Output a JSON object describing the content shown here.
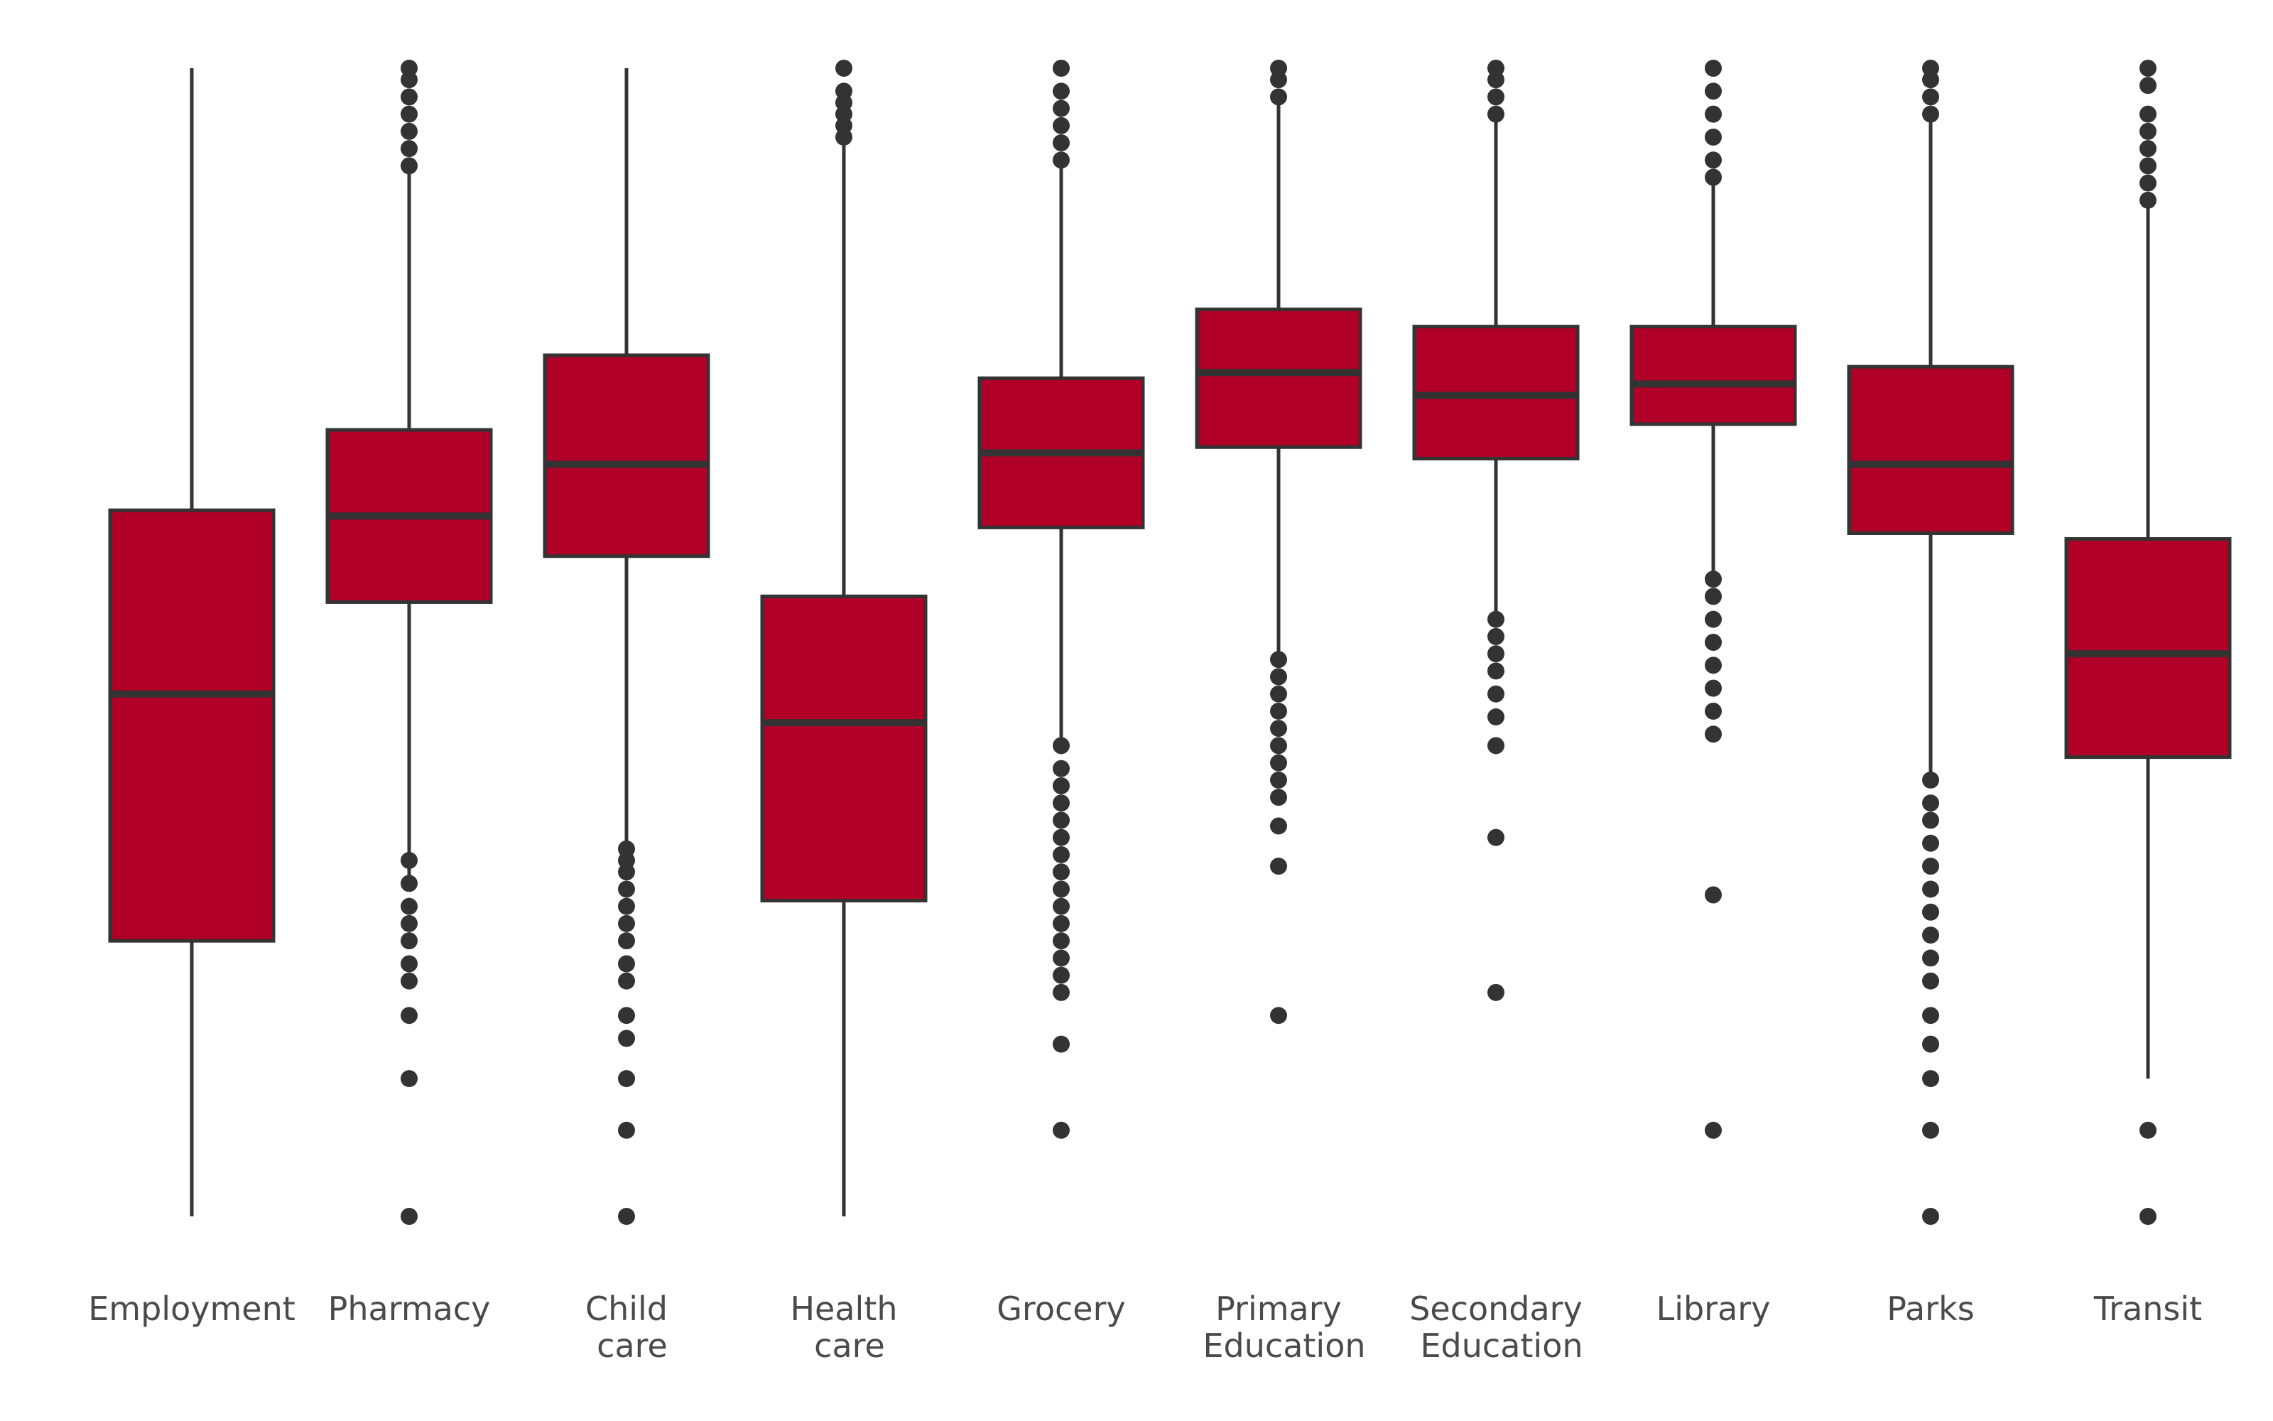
{
  "chart_data": {
    "type": "box",
    "title": "",
    "xlabel": "",
    "ylabel": "",
    "ylim": [
      0,
      1
    ],
    "grid": false,
    "legend": "none",
    "colors": {
      "box_fill": "#b00028",
      "line": "#333333",
      "label": "#4a4a4a"
    },
    "categories": [
      [
        "Employment"
      ],
      [
        "Pharmacy"
      ],
      [
        "Child",
        "care"
      ],
      [
        "Health",
        "care"
      ],
      [
        "Grocery"
      ],
      [
        "Primary",
        "Education"
      ],
      [
        "Secondary",
        "Education"
      ],
      [
        "Library"
      ],
      [
        "Parks"
      ],
      [
        "Transit"
      ]
    ],
    "boxes": [
      {
        "whisker_low": 0.0,
        "q1": 0.24,
        "median": 0.455,
        "q3": 0.615,
        "whisker_high": 1.0,
        "outliers": []
      },
      {
        "whisker_low": 0.285,
        "q1": 0.535,
        "median": 0.61,
        "q3": 0.685,
        "whisker_high": 0.92,
        "outliers": [
          0.0,
          0.12,
          0.175,
          0.205,
          0.22,
          0.24,
          0.255,
          0.27,
          0.29,
          0.31,
          0.915,
          0.93,
          0.945,
          0.96,
          0.975,
          0.99,
          1.0
        ]
      },
      {
        "whisker_low": 0.31,
        "q1": 0.575,
        "median": 0.655,
        "q3": 0.75,
        "whisker_high": 1.0,
        "outliers": [
          0.0,
          0.075,
          0.12,
          0.155,
          0.175,
          0.205,
          0.22,
          0.24,
          0.255,
          0.27,
          0.285,
          0.3,
          0.31,
          0.32
        ]
      },
      {
        "whisker_low": 0.0,
        "q1": 0.275,
        "median": 0.43,
        "q3": 0.54,
        "whisker_high": 0.935,
        "outliers": [
          0.94,
          0.95,
          0.96,
          0.97,
          0.98,
          1.0
        ]
      },
      {
        "whisker_low": 0.41,
        "q1": 0.6,
        "median": 0.665,
        "q3": 0.73,
        "whisker_high": 0.92,
        "outliers": [
          0.075,
          0.15,
          0.195,
          0.21,
          0.225,
          0.24,
          0.255,
          0.27,
          0.285,
          0.3,
          0.315,
          0.33,
          0.345,
          0.36,
          0.375,
          0.39,
          0.41,
          0.92,
          0.935,
          0.95,
          0.965,
          0.98,
          1.0
        ]
      },
      {
        "whisker_low": 0.49,
        "q1": 0.67,
        "median": 0.735,
        "q3": 0.79,
        "whisker_high": 0.975,
        "outliers": [
          0.175,
          0.305,
          0.34,
          0.365,
          0.38,
          0.395,
          0.41,
          0.425,
          0.44,
          0.455,
          0.47,
          0.485,
          0.975,
          0.99,
          1.0
        ]
      },
      {
        "whisker_low": 0.52,
        "q1": 0.66,
        "median": 0.715,
        "q3": 0.775,
        "whisker_high": 0.955,
        "outliers": [
          0.195,
          0.33,
          0.41,
          0.435,
          0.455,
          0.475,
          0.49,
          0.505,
          0.52,
          0.96,
          0.975,
          0.99,
          1.0
        ]
      },
      {
        "whisker_low": 0.555,
        "q1": 0.69,
        "median": 0.725,
        "q3": 0.775,
        "whisker_high": 0.905,
        "outliers": [
          0.075,
          0.28,
          0.42,
          0.44,
          0.46,
          0.48,
          0.5,
          0.52,
          0.54,
          0.555,
          0.905,
          0.92,
          0.94,
          0.96,
          0.98,
          1.0
        ]
      },
      {
        "whisker_low": 0.38,
        "q1": 0.595,
        "median": 0.655,
        "q3": 0.74,
        "whisker_high": 0.955,
        "outliers": [
          0.0,
          0.075,
          0.12,
          0.15,
          0.175,
          0.205,
          0.225,
          0.245,
          0.265,
          0.285,
          0.305,
          0.325,
          0.345,
          0.36,
          0.38,
          0.96,
          0.975,
          0.99,
          1.0
        ]
      },
      {
        "whisker_low": 0.12,
        "q1": 0.4,
        "median": 0.49,
        "q3": 0.59,
        "whisker_high": 0.88,
        "outliers": [
          0.0,
          0.075,
          0.885,
          0.9,
          0.915,
          0.93,
          0.945,
          0.96,
          0.985,
          1.0
        ]
      }
    ]
  }
}
